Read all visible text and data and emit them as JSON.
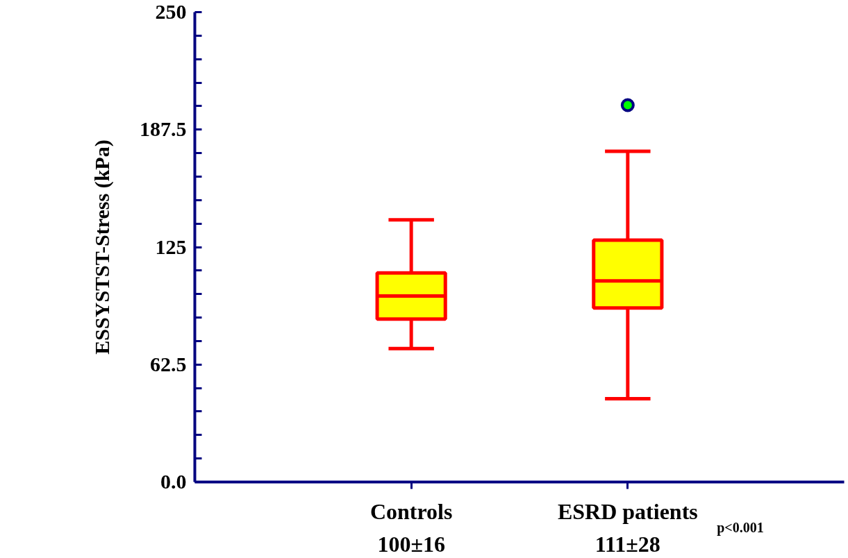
{
  "chart_data": {
    "type": "box",
    "ylabel": "ESSYSTST-Stress (kPa)",
    "categories": [
      "Controls",
      "ESRD patients"
    ],
    "series": [
      {
        "color": "#ffff00",
        "boxes": [
          {
            "low": 71,
            "q1": 86.7,
            "median": 99,
            "q3": 111.2,
            "high": 139.5
          },
          {
            "low": 44.3,
            "q1": 92.6,
            "median": 107,
            "q3": 128.7,
            "high": 176,
            "outliers": [
              200.5
            ]
          }
        ]
      }
    ],
    "ylim": [
      0,
      250
    ],
    "yticks": [
      {
        "value": 0,
        "label": "0.0"
      },
      {
        "value": 12.5,
        "label": null
      },
      {
        "value": 25,
        "label": null
      },
      {
        "value": 37.5,
        "label": null
      },
      {
        "value": 50,
        "label": null
      },
      {
        "value": 62.5,
        "label": "62.5"
      },
      {
        "value": 75,
        "label": null
      },
      {
        "value": 87.5,
        "label": null
      },
      {
        "value": 100,
        "label": null
      },
      {
        "value": 112.5,
        "label": null
      },
      {
        "value": 125,
        "label": "125"
      },
      {
        "value": 137.5,
        "label": null
      },
      {
        "value": 150,
        "label": null
      },
      {
        "value": 162.5,
        "label": null
      },
      {
        "value": 175,
        "label": null
      },
      {
        "value": 187.5,
        "label": "187.5"
      },
      {
        "value": 200,
        "label": null
      },
      {
        "value": 212.5,
        "label": null
      },
      {
        "value": 225,
        "label": null
      },
      {
        "value": 237.5,
        "label": null
      },
      {
        "value": 250,
        "label": "250"
      }
    ],
    "annotations": [
      "100±16",
      "111±28",
      "p<0.001"
    ],
    "grid": false
  }
}
